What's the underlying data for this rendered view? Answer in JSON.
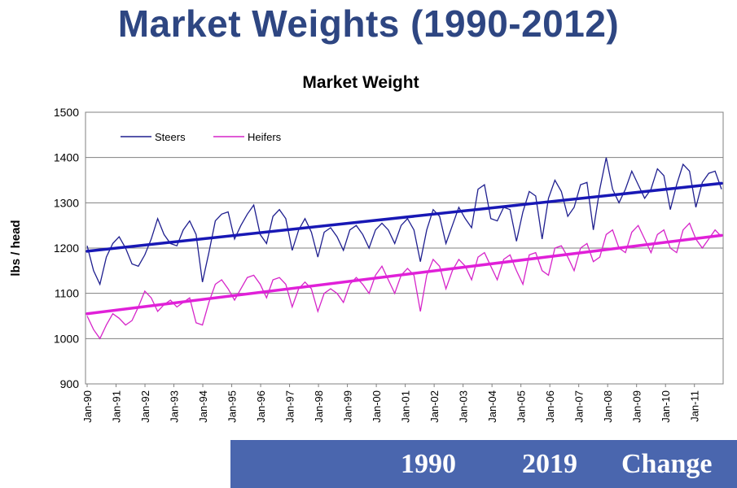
{
  "slide": {
    "title": "Market Weights (1990-2012)"
  },
  "table_header": {
    "col1": "1990",
    "col2": "2019",
    "col3": "Change"
  },
  "colors": {
    "title": "#2e4682",
    "steers": "#1f1f8f",
    "heifers": "#d625c9",
    "steers_trend": "#1818b5",
    "heifers_trend": "#e020d8",
    "bar": "#4a66ae"
  },
  "chart_data": {
    "type": "line",
    "title": "Market Weight",
    "xlabel": "",
    "ylabel": "lbs / head",
    "ylim": [
      900,
      1500
    ],
    "yticks": [
      900,
      1000,
      1100,
      1200,
      1300,
      1400,
      1500
    ],
    "grid": true,
    "legend_position": "top-left",
    "x_tick_labels": [
      "Jan-90",
      "Jan-91",
      "Jan-92",
      "Jan-93",
      "Jan-94",
      "Jan-95",
      "Jan-96",
      "Jan-97",
      "Jan-98",
      "Jan-99",
      "Jan-00",
      "Jan-01",
      "Jan-02",
      "Jan-03",
      "Jan-04",
      "Jan-05",
      "Jan-06",
      "Jan-07",
      "Jan-08",
      "Jan-09",
      "Jan-10",
      "Jan-11"
    ],
    "series": [
      {
        "name": "Steers",
        "values": [
          1205,
          1150,
          1120,
          1180,
          1210,
          1225,
          1200,
          1165,
          1160,
          1185,
          1220,
          1265,
          1230,
          1210,
          1205,
          1240,
          1260,
          1230,
          1125,
          1190,
          1260,
          1275,
          1280,
          1220,
          1250,
          1275,
          1295,
          1230,
          1210,
          1270,
          1285,
          1265,
          1195,
          1240,
          1265,
          1235,
          1180,
          1235,
          1245,
          1225,
          1195,
          1240,
          1250,
          1230,
          1200,
          1240,
          1255,
          1240,
          1210,
          1250,
          1265,
          1240,
          1170,
          1240,
          1285,
          1270,
          1210,
          1250,
          1290,
          1265,
          1245,
          1330,
          1340,
          1265,
          1260,
          1290,
          1285,
          1215,
          1280,
          1325,
          1315,
          1220,
          1310,
          1350,
          1325,
          1270,
          1290,
          1340,
          1345,
          1240,
          1330,
          1400,
          1330,
          1300,
          1330,
          1370,
          1340,
          1310,
          1330,
          1375,
          1360,
          1285,
          1340,
          1385,
          1370,
          1290,
          1345,
          1365,
          1370,
          1330
        ]
      },
      {
        "name": "Heifers",
        "values": [
          1050,
          1020,
          1000,
          1030,
          1055,
          1045,
          1030,
          1040,
          1070,
          1105,
          1090,
          1060,
          1075,
          1085,
          1070,
          1080,
          1090,
          1035,
          1030,
          1080,
          1120,
          1130,
          1110,
          1085,
          1110,
          1135,
          1140,
          1120,
          1090,
          1130,
          1135,
          1120,
          1070,
          1110,
          1125,
          1110,
          1060,
          1100,
          1110,
          1100,
          1080,
          1120,
          1135,
          1120,
          1100,
          1140,
          1160,
          1130,
          1100,
          1140,
          1155,
          1140,
          1060,
          1140,
          1175,
          1160,
          1110,
          1150,
          1175,
          1160,
          1130,
          1180,
          1190,
          1160,
          1130,
          1175,
          1185,
          1150,
          1120,
          1185,
          1190,
          1150,
          1140,
          1200,
          1205,
          1180,
          1150,
          1200,
          1210,
          1170,
          1180,
          1230,
          1240,
          1200,
          1190,
          1235,
          1250,
          1220,
          1190,
          1230,
          1240,
          1200,
          1190,
          1240,
          1255,
          1220,
          1200,
          1220,
          1240,
          1225
        ]
      }
    ],
    "trendlines": [
      {
        "series": "Steers",
        "start": 1193,
        "end": 1343
      },
      {
        "series": "Heifers",
        "start": 1055,
        "end": 1228
      }
    ]
  }
}
